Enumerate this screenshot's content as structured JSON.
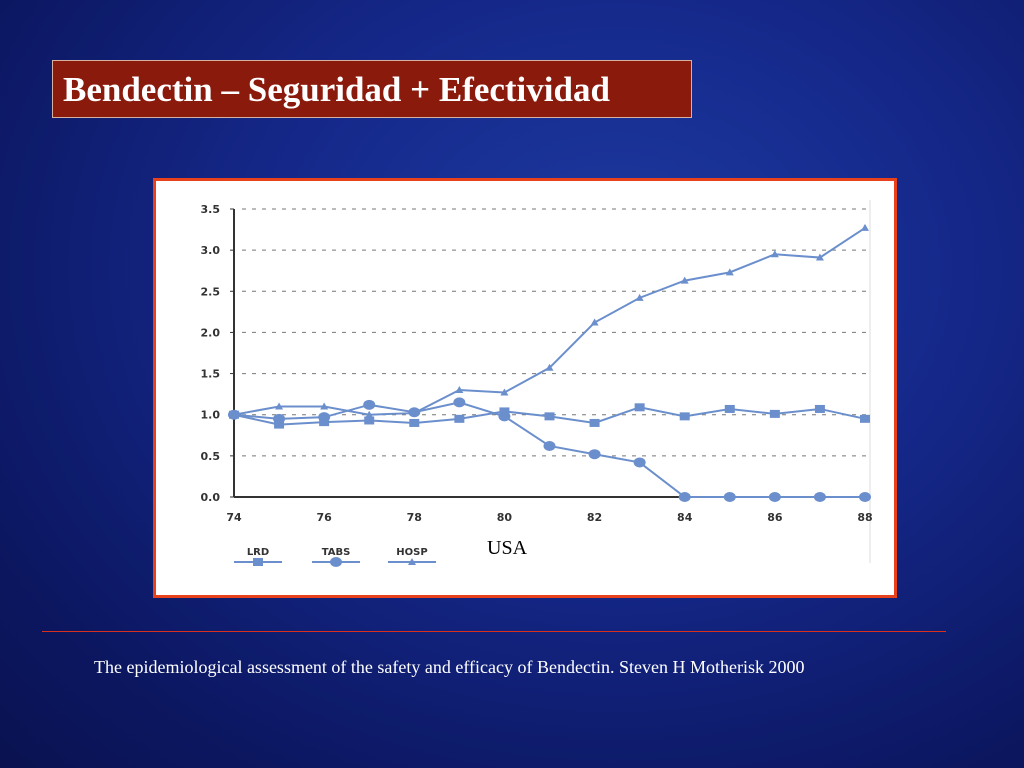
{
  "title": "Bendectin – Seguridad + Efectividad",
  "citation": "The epidemiological assessment of  the safety and efficacy of Bendectin. Steven H Motherisk 2000",
  "colors": {
    "series": "#6b8fcc",
    "frame": "#e8421c",
    "title_bg": "#8a1a0c"
  },
  "chart_data": {
    "type": "line",
    "title": "",
    "annotation": "USA",
    "x": [
      74,
      75,
      76,
      77,
      78,
      79,
      80,
      81,
      82,
      83,
      84,
      85,
      86,
      87,
      88
    ],
    "xticks": [
      "74",
      "76",
      "78",
      "80",
      "82",
      "84",
      "86",
      "88"
    ],
    "yticks": [
      "0.0",
      "0.5",
      "1.0",
      "1.5",
      "2.0",
      "2.5",
      "3.0",
      "3.5"
    ],
    "xlim": [
      74,
      88
    ],
    "ylim": [
      0,
      3.5
    ],
    "grid": "horizontal dashed",
    "legend": "bottom",
    "series": [
      {
        "name": "LRD",
        "marker": "square",
        "values": [
          1.0,
          0.88,
          0.91,
          0.93,
          0.9,
          0.95,
          1.04,
          0.98,
          0.9,
          1.09,
          0.98,
          1.07,
          1.01,
          1.07,
          0.95
        ]
      },
      {
        "name": "TABS",
        "marker": "circle",
        "values": [
          1.0,
          0.95,
          0.97,
          1.12,
          1.03,
          1.15,
          0.98,
          0.62,
          0.52,
          0.42,
          0,
          0,
          0,
          0,
          0
        ]
      },
      {
        "name": "HOSP",
        "marker": "triangle",
        "values": [
          1.0,
          1.1,
          1.1,
          1.0,
          1.02,
          1.3,
          1.27,
          1.57,
          2.12,
          2.42,
          2.63,
          2.73,
          2.95,
          2.91,
          3.27
        ]
      }
    ]
  }
}
